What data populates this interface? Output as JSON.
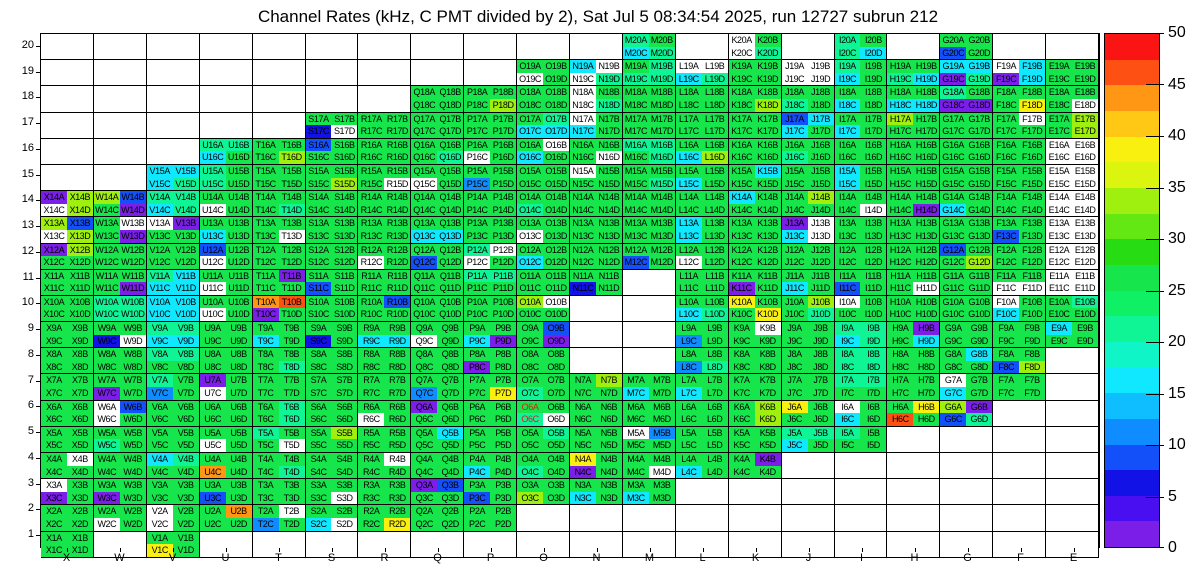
{
  "title": "Channel Rates (kHz, C PMT divided by 2), Sat Jul  5 08:34:54 2025, run 12727 subrun 212",
  "chart_data": {
    "type": "heatmap",
    "title": "Channel Rates (kHz, C PMT divided by 2), Sat Jul  5 08:34:54 2025, run 12727 subrun 212",
    "run": "12727",
    "subrun": "212",
    "timestamp": "Sat Jul  5 08:34:54 2025",
    "units": "kHz",
    "columns": [
      "X",
      "W",
      "V",
      "U",
      "T",
      "S",
      "R",
      "Q",
      "P",
      "O",
      "N",
      "M",
      "L",
      "K",
      "J",
      "I",
      "H",
      "G",
      "F",
      "E"
    ],
    "rows": [
      20,
      19,
      18,
      17,
      16,
      15,
      14,
      13,
      12,
      11,
      10,
      9,
      8,
      7,
      6,
      5,
      4,
      3,
      2,
      1
    ],
    "cell_suffixes": [
      "A",
      "B",
      "C",
      "D"
    ],
    "palette": {
      "v": "#7B1FE8",
      "n": "#1212E6",
      "b": "#1450FA",
      "l": "#0F8CFF",
      "c": "#0FE8FF",
      "t": "#0FF596",
      "g": "#16E64B",
      "e": "#A0F00F",
      "y": "#FAF00F",
      "o": "#FF9614",
      "r": "#FF5014",
      "w": "#FFFFFF"
    },
    "palette_value_hint_khz": {
      "v": "0-2.5",
      "n": "5-7.5",
      "b": "7.5-10",
      "l": "10-12.5",
      "c": "15-17.5",
      "t": "20-22.5",
      "g": "25-30",
      "e": "32.5-35",
      "y": "37.5-40",
      "o": "42.5-45",
      "r": "45-47.5",
      "w": "empty/0"
    },
    "red_labels": [
      "O6A",
      "O6C"
    ],
    "red_label_color": "#E81414",
    "cells": {
      "20": {
        "M": "tgct",
        "K": "wgwt",
        "I": "tgtc",
        "G": "ggbg"
      },
      "19": {
        "O": "ggwg",
        "N": "cwwt",
        "M": "gttt",
        "L": "wwct",
        "K": "gggg",
        "J": "wwww",
        "I": "tgcg",
        "H": "ggtc",
        "G": "ccvt",
        "F": "wcvc",
        "E": "gggg"
      },
      "18": {
        "Q": "gggg",
        "P": "ggge",
        "O": "gggg",
        "N": "wgwt",
        "M": "gggg",
        "L": "gggg",
        "K": "ggge",
        "J": "ggtg",
        "I": "ggcg",
        "H": "ggcc",
        "G": "tgvv",
        "F": "gggy",
        "E": "gggw"
      },
      "17": {
        "S": "ggnw",
        "R": "gggg",
        "Q": "gggg",
        "P": "gggg",
        "O": "gtcc",
        "N": "wgcg",
        "M": "gggg",
        "L": "gggg",
        "K": "gggg",
        "J": "bccg",
        "I": "ggcg",
        "H": "eggg",
        "G": "gggg",
        "F": "gwgg",
        "E": "gege"
      },
      "16": {
        "U": "ttcg",
        "T": "ggge",
        "S": "bggg",
        "R": "gggg",
        "Q": "gggt",
        "P": "ggwg",
        "O": "gwcg",
        "N": "gggw",
        "M": "ttgt",
        "L": "ggce",
        "K": "gggg",
        "J": "ggtg",
        "I": "gggg",
        "H": "gggg",
        "G": "gggg",
        "F": "gggg",
        "E": "wwww"
      },
      "15": {
        "V": "ccct",
        "U": "tgtg",
        "T": "gggg",
        "S": "ggge",
        "R": "gggw",
        "Q": "ggwg",
        "P": "gglg",
        "O": "gggg",
        "N": "wggg",
        "M": "gggt",
        "L": "ggcg",
        "K": "gcgg",
        "J": "gggg",
        "I": "cgcg",
        "H": "gggg",
        "G": "gggg",
        "F": "gggg",
        "E": "wwww"
      },
      "14": {
        "X": "vewe",
        "W": "ebgv",
        "V": "ttct",
        "U": "ggwg",
        "T": "gggt",
        "S": "gggg",
        "R": "gggg",
        "Q": "gggg",
        "P": "gggg",
        "O": "ggtg",
        "N": "gggg",
        "M": "gggg",
        "L": "gggg",
        "K": "cggg",
        "J": "gegg",
        "I": "gggw",
        "H": "gggv",
        "G": "ggcg",
        "F": "gggg",
        "E": "wwww"
      },
      "13": {
        "X": "ebwe",
        "W": "gwgv",
        "V": "wvgg",
        "U": "ggcg",
        "T": "gggw",
        "S": "gggg",
        "R": "gggg",
        "Q": "ggcc",
        "P": "gggg",
        "O": "ggwg",
        "N": "gggg",
        "M": "gggg",
        "L": "cgcg",
        "K": "gggg",
        "J": "vwcw",
        "I": "gggg",
        "H": "gggg",
        "G": "gggg",
        "F": "ggbg",
        "E": "wwww"
      },
      "12": {
        "X": "vegg",
        "W": "gggg",
        "V": "gggg",
        "U": "bgwg",
        "T": "gggg",
        "S": "gggg",
        "R": "ggwg",
        "Q": "ggbg",
        "P": "twwg",
        "O": "ggcg",
        "N": "gggg",
        "M": "ggbg",
        "L": "ggwg",
        "K": "gggg",
        "J": "gggg",
        "I": "gggg",
        "H": "gggg",
        "G": "bgge",
        "F": "gggg",
        "E": "wwww"
      },
      "11": {
        "X": "gggg",
        "W": "gggv",
        "V": "tccc",
        "U": "ggwg",
        "T": "gvgg",
        "S": "ggbg",
        "R": "gggg",
        "Q": "gggg",
        "P": "ttgg",
        "O": "gggg",
        "N": "ggng",
        "L": "gggg",
        "K": "ggvg",
        "J": "ggcg",
        "I": "ggbg",
        "H": "gggw",
        "G": "gggg",
        "F": "ggww",
        "E": "wwww"
      },
      "10": {
        "X": "gggg",
        "W": "tttt",
        "V": "cccc",
        "U": "ggwg",
        "T": "orvg",
        "S": "gggg",
        "R": "gbgg",
        "Q": "gggg",
        "P": "gggg",
        "O": "ewgg",
        "L": "ggct",
        "K": "yggy",
        "J": "gegt",
        "I": "wggg",
        "H": "gggg",
        "G": "gggg",
        "F": "wgcg",
        "E": "gtgg"
      },
      "9": {
        "X": "gggg",
        "W": "ggnw",
        "V": "ttcc",
        "U": "gggg",
        "T": "ggcg",
        "S": "ggng",
        "R": "ggcc",
        "Q": "ggwg",
        "P": "ggcv",
        "O": "gbgv",
        "L": "gglg",
        "K": "gwgg",
        "J": "gggg",
        "I": "ttct",
        "H": "gvgc",
        "G": "gggg",
        "F": "gggg",
        "E": "cggg"
      },
      "8": {
        "X": "gggg",
        "W": "gggg",
        "V": "ttgg",
        "U": "gggg",
        "T": "gggt",
        "S": "gggg",
        "R": "gggg",
        "Q": "gggg",
        "P": "ggvg",
        "O": "gggg",
        "L": "gglt",
        "K": "gggg",
        "J": "gggg",
        "I": "tttt",
        "H": "gggg",
        "G": "gcgg",
        "F": "ggbe"
      },
      "7": {
        "X": "gggg",
        "W": "ggvg",
        "V": "tglg",
        "U": "vgwg",
        "T": "gggg",
        "S": "gggg",
        "R": "gggg",
        "Q": "gglg",
        "P": "gggy",
        "O": "ggtg",
        "N": "gegg",
        "M": "ggcg",
        "L": "ggcg",
        "K": "gggg",
        "J": "gggg",
        "I": "ttgg",
        "H": "gggg",
        "G": "wgcg",
        "F": "gggg"
      },
      "6": {
        "X": "gggg",
        "W": "wbwg",
        "V": "gggg",
        "U": "gggg",
        "T": "gtgt",
        "S": "gggg",
        "R": "ggwg",
        "Q": "vggg",
        "P": "gggg",
        "O": "ggtw",
        "N": "gggg",
        "M": "gggg",
        "L": "gggg",
        "K": "gege",
        "J": "yggg",
        "I": "wgcg",
        "H": "gyrg",
        "G": "evbt"
      },
      "5": {
        "X": "gggg",
        "W": "ggtg",
        "V": "gggg",
        "U": "ggwg",
        "T": "tggw",
        "S": "gegg",
        "R": "gggg",
        "Q": "gcgg",
        "P": "gggg",
        "O": "gtgg",
        "N": "gggg",
        "M": "wlgg",
        "L": "gggg",
        "K": "gggg",
        "J": "ttcg",
        "I": "tggg"
      },
      "4": {
        "X": "gwgg",
        "W": "gggg",
        "V": "ctgg",
        "U": "ggog",
        "T": "gggt",
        "S": "gggg",
        "R": "gwgg",
        "Q": "gggg",
        "P": "ggcg",
        "O": "ggtg",
        "N": "ygvg",
        "M": "gggw",
        "L": "ggcg",
        "K": "gvgg"
      },
      "3": {
        "X": "wgvg",
        "W": "ggvg",
        "V": "gggg",
        "U": "ggbg",
        "T": "gggg",
        "S": "gggw",
        "R": "gggg",
        "Q": "vbgg",
        "P": "ggbg",
        "O": "ggeg",
        "N": "ggcg",
        "M": "ggcg"
      },
      "2": {
        "X": "gggg",
        "W": "ggwg",
        "V": "wgwg",
        "U": "gogg",
        "T": "gwlg",
        "S": "ggcw",
        "R": "gggy",
        "Q": "gggg",
        "P": "gggg"
      },
      "1": {
        "X": "gggg",
        "V": "ggyg"
      }
    },
    "colorbar": {
      "min": 0,
      "max": 50,
      "ticks": [
        0,
        5,
        10,
        15,
        20,
        25,
        30,
        35,
        40,
        45,
        50
      ],
      "bands_top_to_bottom": [
        "#FA1414",
        "#FF5014",
        "#FF9614",
        "#FFC814",
        "#FAF00F",
        "#DCF50F",
        "#A0F00F",
        "#64E814",
        "#28DC14",
        "#16E64B",
        "#0FF064",
        "#0FF596",
        "#0FF5C8",
        "#0FE8FF",
        "#0FBEFF",
        "#0F8CFF",
        "#1450FA",
        "#1212E6",
        "#4A0FF0",
        "#7B1FE8"
      ]
    },
    "grid": true,
    "legend_position": "right"
  }
}
